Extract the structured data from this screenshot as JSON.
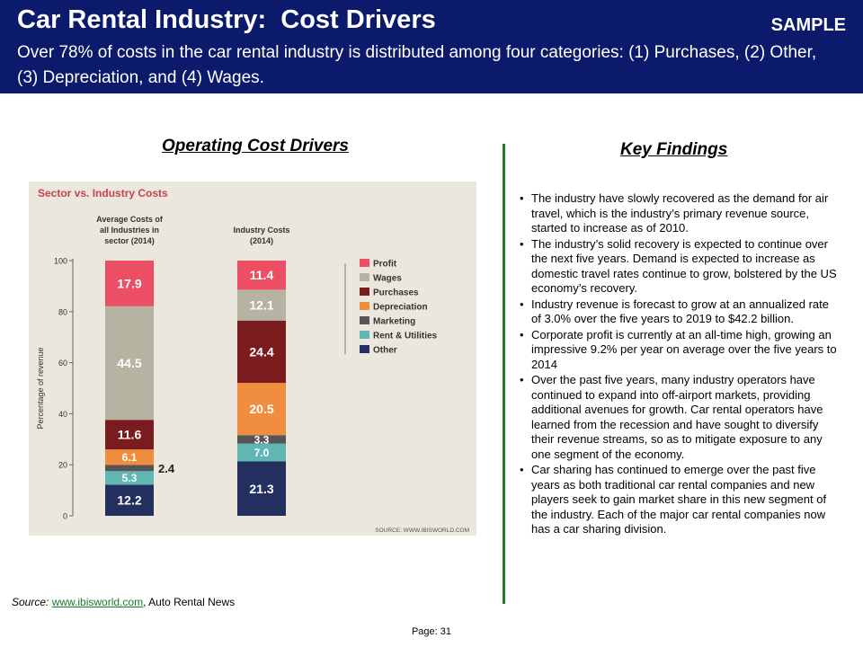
{
  "header": {
    "title": "Car Rental Industry:  Cost Drivers",
    "badge": "SAMPLE",
    "subtitle": "Over 78% of costs in the  car rental industry is distributed among four categories:  (1) Purchases, (2) Other, (3) Depreciation, and (4) Wages."
  },
  "left_heading": "Operating Cost Drivers",
  "right_heading": "Key Findings",
  "chart_data": {
    "type": "bar",
    "stacked": true,
    "title": "Sector vs. Industry Costs",
    "ylabel": "Percentage of revenue",
    "ylim": [
      0,
      100
    ],
    "yticks": [
      "0",
      "20",
      "40",
      "60",
      "80",
      "100"
    ],
    "grid": false,
    "legend_position": "right",
    "source_note": "SOURCE: WWW.IBISWORLD.COM",
    "categories": [
      "Average Costs of all Industries in sector (2014)",
      "Industry Costs (2014)"
    ],
    "category_label_lines": [
      [
        "Average Costs of",
        "all Industries in",
        "sector (2014)"
      ],
      [
        "Industry Costs",
        "(2014)"
      ]
    ],
    "series": [
      {
        "name": "Other",
        "color": "#232f5e",
        "values": [
          12.2,
          21.3
        ],
        "labels": [
          "12.2",
          "21.3"
        ]
      },
      {
        "name": "Rent & Utilities",
        "color": "#5fb6b2",
        "values": [
          5.3,
          7.0
        ],
        "labels": [
          "5.3",
          "7.0"
        ]
      },
      {
        "name": "Marketing",
        "color": "#555555",
        "values": [
          2.4,
          3.3
        ],
        "labels": [
          "2.4",
          "3.3"
        ]
      },
      {
        "name": "Depreciation",
        "color": "#f18d3e",
        "values": [
          6.1,
          20.5
        ],
        "labels": [
          "6.1",
          "20.5"
        ]
      },
      {
        "name": "Purchases",
        "color": "#7a1b1e",
        "values": [
          11.6,
          24.4
        ],
        "labels": [
          "11.6",
          "24.4"
        ]
      },
      {
        "name": "Wages",
        "color": "#b6b3a2",
        "values": [
          44.5,
          12.1
        ],
        "labels": [
          "44.5",
          "12.1"
        ]
      },
      {
        "name": "Profit",
        "color": "#ec4e63",
        "values": [
          17.9,
          11.4
        ],
        "labels": [
          "17.9",
          "11.4"
        ]
      }
    ],
    "legend_order": [
      "Profit",
      "Wages",
      "Purchases",
      "Depreciation",
      "Marketing",
      "Rent & Utilities",
      "Other"
    ]
  },
  "findings": [
    "The industry have slowly recovered as the demand for air travel, which is the industry’s primary revenue source, started to increase as of 2010.",
    "The industry’s solid recovery is expected to continue over the next five years. Demand is expected to increase as domestic travel rates continue to grow, bolstered by the US economy’s recovery.",
    "Industry revenue is forecast to grow at an annualized rate of 3.0% over the five years to 2019 to $42.2 billion.",
    "Corporate profit is currently at an all-time high, growing an impressive 9.2% per year on average over the five years to 2014",
    "Over the past five years, many industry operators have continued to expand into off-airport markets, providing additional avenues for growth. Car rental operators have learned from the recession and have sought to diversify their revenue streams, so as to mitigate exposure to any one segment of the economy.",
    "Car sharing has continued to emerge over the past five years as both traditional car rental companies and new players seek to gain market share in this new segment of the industry.  Each of the major car rental companies now has a car sharing division."
  ],
  "source": {
    "label": "Source:",
    "link_text": "www.ibisworld.com",
    "rest": ", Auto Rental News"
  },
  "page": "Page: 31"
}
